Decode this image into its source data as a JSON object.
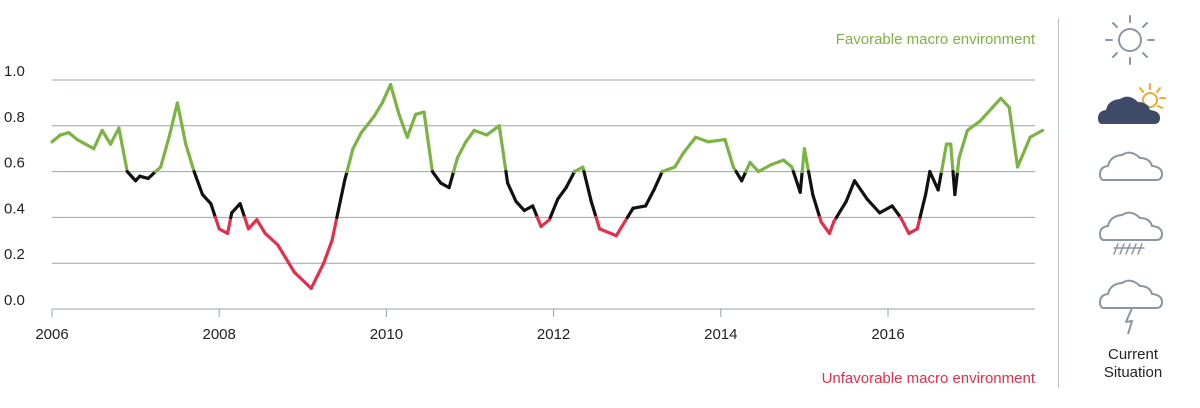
{
  "chart_data": {
    "type": "line",
    "ylim": [
      0,
      1
    ],
    "yticks": [
      "0.0",
      "0.2",
      "0.4",
      "0.6",
      "0.8",
      "1.0"
    ],
    "xlim": [
      2006,
      2017.9
    ],
    "xticks": [
      "2006",
      "2008",
      "2010",
      "2012",
      "2014",
      "2016"
    ],
    "grid": true,
    "colors": {
      "favorable": "#7cb342",
      "neutral": "#111111",
      "unfavorable": "#e0304a",
      "grid": "#9aa3ad"
    },
    "thresholds": {
      "favorable_above": 0.6,
      "unfavorable_below": 0.4
    },
    "annotations": {
      "top": "Favorable macro environment",
      "bottom": "Unfavorable macro environment"
    },
    "series": [
      {
        "x": [
          2006.0,
          2006.1,
          2006.2,
          2006.3,
          2006.4,
          2006.5,
          2006.6,
          2006.7,
          2006.8,
          2006.9,
          2007.0,
          2007.05,
          2007.15,
          2007.3,
          2007.4,
          2007.5,
          2007.6,
          2007.7,
          2007.8,
          2007.9,
          2008.0,
          2008.1,
          2008.15,
          2008.25,
          2008.35,
          2008.45,
          2008.55,
          2008.7,
          2008.9,
          2009.1,
          2009.25,
          2009.35,
          2009.5,
          2009.6,
          2009.7,
          2009.85,
          2009.95,
          2010.05,
          2010.15,
          2010.25,
          2010.35,
          2010.45,
          2010.55,
          2010.65,
          2010.75,
          2010.85,
          2010.95,
          2011.05,
          2011.2,
          2011.35,
          2011.45,
          2011.55,
          2011.65,
          2011.75,
          2011.85,
          2011.95,
          2012.05,
          2012.15,
          2012.25,
          2012.35,
          2012.45,
          2012.55,
          2012.75,
          2012.85,
          2012.95,
          2013.1,
          2013.2,
          2013.3,
          2013.45,
          2013.55,
          2013.7,
          2013.85,
          2014.05,
          2014.15,
          2014.25,
          2014.35,
          2014.45,
          2014.6,
          2014.75,
          2014.85,
          2014.95,
          2015.0,
          2015.1,
          2015.2,
          2015.3,
          2015.35,
          2015.5,
          2015.6,
          2015.75,
          2015.9,
          2016.05,
          2016.15,
          2016.25,
          2016.35,
          2016.45,
          2016.5,
          2016.6,
          2016.7,
          2016.75,
          2016.8,
          2016.85,
          2016.95,
          2017.1,
          2017.25,
          2017.35,
          2017.45,
          2017.55,
          2017.7,
          2017.85
        ],
        "y": [
          0.73,
          0.76,
          0.77,
          0.74,
          0.72,
          0.7,
          0.78,
          0.72,
          0.79,
          0.6,
          0.56,
          0.58,
          0.57,
          0.62,
          0.75,
          0.9,
          0.72,
          0.6,
          0.5,
          0.46,
          0.35,
          0.33,
          0.42,
          0.46,
          0.35,
          0.39,
          0.33,
          0.28,
          0.16,
          0.09,
          0.2,
          0.3,
          0.56,
          0.7,
          0.77,
          0.84,
          0.9,
          0.98,
          0.85,
          0.75,
          0.85,
          0.86,
          0.6,
          0.55,
          0.53,
          0.66,
          0.73,
          0.78,
          0.76,
          0.8,
          0.55,
          0.47,
          0.43,
          0.45,
          0.36,
          0.39,
          0.48,
          0.53,
          0.6,
          0.62,
          0.47,
          0.35,
          0.32,
          0.38,
          0.44,
          0.45,
          0.52,
          0.6,
          0.62,
          0.68,
          0.75,
          0.73,
          0.74,
          0.62,
          0.56,
          0.64,
          0.6,
          0.63,
          0.65,
          0.62,
          0.51,
          0.7,
          0.5,
          0.38,
          0.33,
          0.38,
          0.47,
          0.56,
          0.48,
          0.42,
          0.45,
          0.4,
          0.33,
          0.35,
          0.5,
          0.6,
          0.52,
          0.72,
          0.72,
          0.5,
          0.66,
          0.78,
          0.82,
          0.88,
          0.92,
          0.88,
          0.62,
          0.75,
          0.78
        ]
      }
    ]
  },
  "side_panel": {
    "icons": [
      "sun-icon",
      "sun-behind-cloud-icon",
      "cloud-icon",
      "rain-cloud-icon",
      "thunder-cloud-icon"
    ],
    "current_index": 1,
    "caption_line1": "Current",
    "caption_line2": "Situation",
    "colors": {
      "outline": "#8a96a0",
      "active_cloud": "#3f4a66",
      "sun": "#f2a833",
      "divider": "#b8bfc6"
    }
  }
}
